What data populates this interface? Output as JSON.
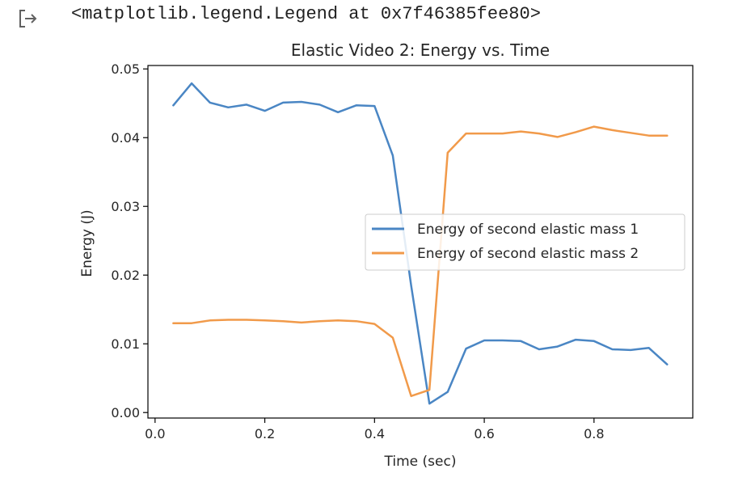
{
  "output": {
    "icon": "output-arrow-icon",
    "text": "<matplotlib.legend.Legend at 0x7f46385fee80>"
  },
  "chart_data": {
    "type": "line",
    "title": "Elastic Video 2: Energy vs. Time",
    "xlabel": "Time (sec)",
    "ylabel": "Energy (J)",
    "xlim": [
      -0.013,
      0.98
    ],
    "ylim": [
      -0.0008,
      0.0505
    ],
    "xticks": [
      0.0,
      0.2,
      0.4,
      0.6,
      0.8
    ],
    "xtick_labels": [
      "0.0",
      "0.2",
      "0.4",
      "0.6",
      "0.8"
    ],
    "yticks": [
      0.0,
      0.01,
      0.02,
      0.03,
      0.04,
      0.05
    ],
    "ytick_labels": [
      "0.00",
      "0.01",
      "0.02",
      "0.03",
      "0.04",
      "0.05"
    ],
    "grid": false,
    "legend_position": "center-right",
    "x": [
      0.0333,
      0.0667,
      0.1,
      0.1333,
      0.1667,
      0.2,
      0.2333,
      0.2667,
      0.3,
      0.3333,
      0.3667,
      0.4,
      0.4333,
      0.4667,
      0.5,
      0.5333,
      0.5667,
      0.6,
      0.6333,
      0.6667,
      0.7,
      0.7333,
      0.7667,
      0.8,
      0.8333,
      0.8667,
      0.9,
      0.9333
    ],
    "series": [
      {
        "name": "Energy of second elastic mass 1",
        "color": "#4a86c4",
        "values": [
          0.0447,
          0.0479,
          0.0451,
          0.0444,
          0.0448,
          0.0439,
          0.0451,
          0.0452,
          0.0448,
          0.0437,
          0.0447,
          0.0446,
          0.0374,
          0.0185,
          0.0013,
          0.003,
          0.0093,
          0.0105,
          0.0105,
          0.0104,
          0.0092,
          0.0096,
          0.0106,
          0.0104,
          0.0092,
          0.0091,
          0.0094,
          0.007
        ]
      },
      {
        "name": "Energy of second elastic mass 2",
        "color": "#f19a4a",
        "values": [
          0.013,
          0.013,
          0.0134,
          0.0135,
          0.0135,
          0.0134,
          0.0133,
          0.0131,
          0.0133,
          0.0134,
          0.0133,
          0.0129,
          0.0109,
          0.0024,
          0.0033,
          0.0378,
          0.0406,
          0.0406,
          0.0406,
          0.0409,
          0.0406,
          0.0401,
          0.0408,
          0.0416,
          0.0411,
          0.0407,
          0.0403,
          0.0403
        ]
      }
    ]
  }
}
